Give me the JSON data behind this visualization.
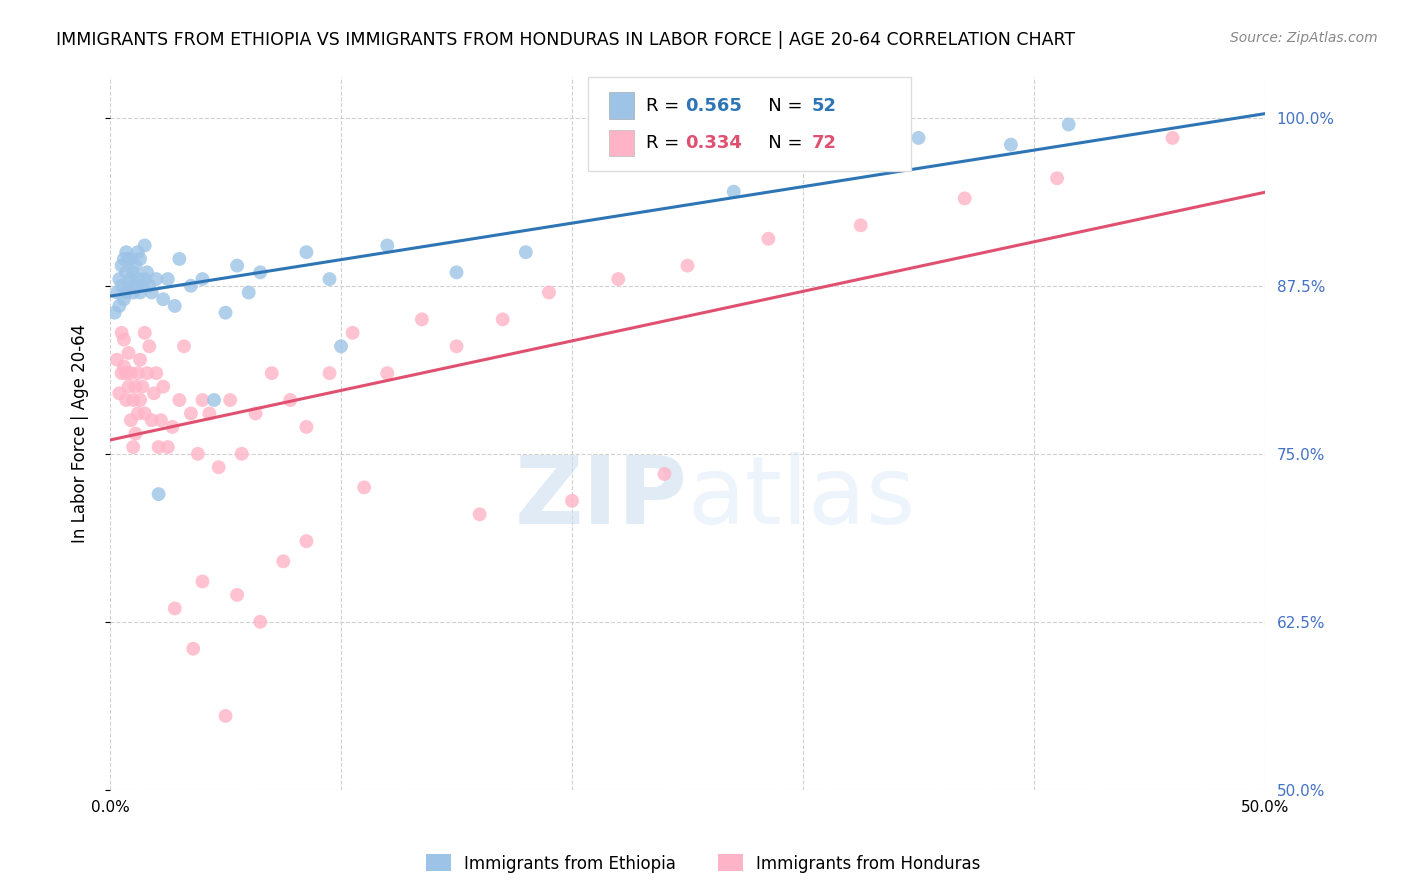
{
  "title": "IMMIGRANTS FROM ETHIOPIA VS IMMIGRANTS FROM HONDURAS IN LABOR FORCE | AGE 20-64 CORRELATION CHART",
  "source": "Source: ZipAtlas.com",
  "ylabel": "In Labor Force | Age 20-64",
  "xlim": [
    0.0,
    0.5
  ],
  "ylim": [
    0.5,
    1.03
  ],
  "yticks": [
    0.5,
    0.625,
    0.75,
    0.875,
    1.0
  ],
  "ytick_labels": [
    "50.0%",
    "62.5%",
    "75.0%",
    "87.5%",
    "100.0%"
  ],
  "xticks": [
    0.0,
    0.1,
    0.2,
    0.3,
    0.4,
    0.5
  ],
  "xtick_labels": [
    "0.0%",
    "",
    "",
    "",
    "",
    "50.0%"
  ],
  "blue_R": 0.565,
  "blue_N": 52,
  "pink_R": 0.334,
  "pink_N": 72,
  "blue_color": "#9DC3E6",
  "pink_color": "#FFB3C6",
  "blue_line_color": "#2E75B6",
  "pink_line_color": "#E05070",
  "right_tick_color": "#4472C4",
  "watermark_zip": "ZIP",
  "watermark_atlas": "atlas",
  "ethiopia_x": [
    0.002,
    0.003,
    0.004,
    0.004,
    0.005,
    0.005,
    0.006,
    0.006,
    0.007,
    0.007,
    0.007,
    0.008,
    0.008,
    0.009,
    0.009,
    0.01,
    0.01,
    0.011,
    0.011,
    0.012,
    0.012,
    0.013,
    0.013,
    0.014,
    0.015,
    0.015,
    0.016,
    0.017,
    0.018,
    0.02,
    0.021,
    0.023,
    0.025,
    0.028,
    0.03,
    0.035,
    0.04,
    0.045,
    0.05,
    0.055,
    0.06,
    0.065,
    0.085,
    0.095,
    0.1,
    0.12,
    0.15,
    0.18,
    0.27,
    0.35,
    0.39,
    0.415
  ],
  "ethiopia_y": [
    0.855,
    0.87,
    0.86,
    0.88,
    0.875,
    0.89,
    0.865,
    0.895,
    0.87,
    0.885,
    0.9,
    0.875,
    0.895,
    0.88,
    0.895,
    0.87,
    0.885,
    0.875,
    0.89,
    0.88,
    0.9,
    0.87,
    0.895,
    0.875,
    0.905,
    0.88,
    0.885,
    0.875,
    0.87,
    0.88,
    0.72,
    0.865,
    0.88,
    0.86,
    0.895,
    0.875,
    0.88,
    0.79,
    0.855,
    0.89,
    0.87,
    0.885,
    0.9,
    0.88,
    0.83,
    0.905,
    0.885,
    0.9,
    0.945,
    0.985,
    0.98,
    0.995
  ],
  "honduras_x": [
    0.003,
    0.004,
    0.005,
    0.005,
    0.006,
    0.006,
    0.007,
    0.007,
    0.008,
    0.008,
    0.009,
    0.009,
    0.01,
    0.01,
    0.011,
    0.011,
    0.012,
    0.012,
    0.013,
    0.013,
    0.014,
    0.015,
    0.015,
    0.016,
    0.017,
    0.018,
    0.019,
    0.02,
    0.021,
    0.022,
    0.023,
    0.025,
    0.027,
    0.03,
    0.032,
    0.035,
    0.038,
    0.04,
    0.043,
    0.047,
    0.052,
    0.057,
    0.063,
    0.07,
    0.078,
    0.085,
    0.095,
    0.105,
    0.12,
    0.135,
    0.15,
    0.17,
    0.19,
    0.22,
    0.25,
    0.285,
    0.325,
    0.37,
    0.41,
    0.46,
    0.085,
    0.11,
    0.16,
    0.2,
    0.24,
    0.04,
    0.05,
    0.028,
    0.036,
    0.055,
    0.065,
    0.075
  ],
  "honduras_y": [
    0.82,
    0.795,
    0.81,
    0.84,
    0.815,
    0.835,
    0.79,
    0.81,
    0.8,
    0.825,
    0.81,
    0.775,
    0.755,
    0.79,
    0.765,
    0.8,
    0.78,
    0.81,
    0.79,
    0.82,
    0.8,
    0.84,
    0.78,
    0.81,
    0.83,
    0.775,
    0.795,
    0.81,
    0.755,
    0.775,
    0.8,
    0.755,
    0.77,
    0.79,
    0.83,
    0.78,
    0.75,
    0.79,
    0.78,
    0.74,
    0.79,
    0.75,
    0.78,
    0.81,
    0.79,
    0.77,
    0.81,
    0.84,
    0.81,
    0.85,
    0.83,
    0.85,
    0.87,
    0.88,
    0.89,
    0.91,
    0.92,
    0.94,
    0.955,
    0.985,
    0.685,
    0.725,
    0.705,
    0.715,
    0.735,
    0.655,
    0.555,
    0.635,
    0.605,
    0.645,
    0.625,
    0.67
  ]
}
